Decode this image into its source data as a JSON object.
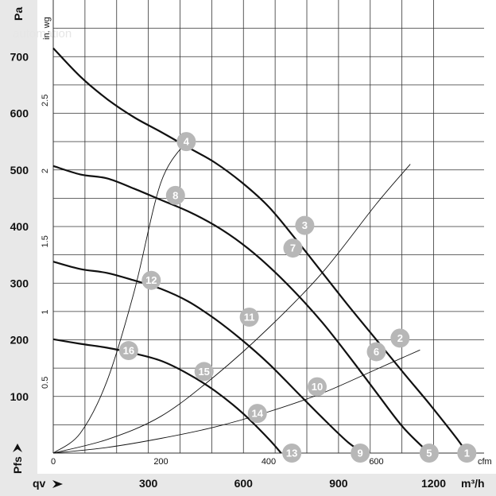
{
  "chart_data": {
    "type": "line",
    "x_axis_primary": {
      "label": "qv",
      "unit": "m³/h",
      "ticks": [
        300,
        600,
        900,
        1200
      ],
      "range": [
        0,
        1360
      ]
    },
    "x_axis_secondary": {
      "unit": "cfm",
      "ticks": [
        0,
        200,
        400,
        600
      ],
      "range": [
        0,
        800
      ]
    },
    "y_axis_primary": {
      "label": "Pfs",
      "unit": "Pa",
      "ticks": [
        100,
        200,
        300,
        400,
        500,
        600,
        700
      ],
      "range": [
        0,
        800
      ]
    },
    "y_axis_secondary": {
      "unit": "in. wg",
      "ticks": [
        "0.5",
        "1",
        "1.5",
        "2",
        "2.5"
      ],
      "values": [
        0.5,
        1,
        1.5,
        2,
        2.5
      ]
    },
    "watermark": "automation",
    "series": [
      {
        "x": [
          0,
          50,
          100,
          150,
          200,
          250,
          300,
          350,
          400,
          450,
          500,
          550,
          600,
          650,
          700,
          750,
          768
        ],
        "y": [
          715,
          665,
          625,
          593,
          567,
          540,
          513,
          478,
          435,
          378,
          318,
          258,
          200,
          142,
          85,
          25,
          0
        ]
      },
      {
        "x": [
          0,
          50,
          100,
          150,
          200,
          250,
          300,
          350,
          400,
          450,
          500,
          550,
          600,
          650,
          698
        ],
        "y": [
          507,
          492,
          485,
          467,
          447,
          427,
          402,
          370,
          330,
          283,
          230,
          170,
          107,
          45,
          0
        ]
      },
      {
        "x": [
          0,
          50,
          100,
          150,
          200,
          250,
          300,
          350,
          400,
          450,
          500,
          550,
          580
        ],
        "y": [
          338,
          325,
          318,
          305,
          290,
          268,
          237,
          200,
          158,
          110,
          62,
          17,
          0
        ]
      },
      {
        "x": [
          0,
          50,
          100,
          150,
          200,
          250,
          300,
          350,
          400,
          423
        ],
        "y": [
          201,
          193,
          186,
          176,
          163,
          140,
          110,
          72,
          25,
          0
        ]
      },
      {
        "x": [
          0,
          50,
          100,
          150,
          200,
          250
        ],
        "y": [
          0,
          35,
          128,
          284,
          478,
          553
        ]
      },
      {
        "x": [
          0,
          100,
          200,
          300,
          400,
          500,
          600,
          663
        ],
        "y": [
          0,
          24,
          65,
          136,
          221,
          319,
          440,
          510
        ]
      },
      {
        "x": [
          0,
          100,
          200,
          300,
          400,
          500,
          600,
          681
        ],
        "y": [
          0,
          10,
          26,
          46,
          73,
          106,
          148,
          182
        ]
      }
    ],
    "markers": [
      {
        "label": "1",
        "x": 768,
        "y": 0
      },
      {
        "label": "2",
        "x": 644,
        "y": 203
      },
      {
        "label": "3",
        "x": 467,
        "y": 402
      },
      {
        "label": "4",
        "x": 247,
        "y": 550
      },
      {
        "label": "5",
        "x": 698,
        "y": 0
      },
      {
        "label": "6",
        "x": 600,
        "y": 179
      },
      {
        "label": "7",
        "x": 445,
        "y": 362
      },
      {
        "label": "8",
        "x": 227,
        "y": 455
      },
      {
        "label": "9",
        "x": 570,
        "y": 0
      },
      {
        "label": "10",
        "x": 490,
        "y": 117
      },
      {
        "label": "11",
        "x": 364,
        "y": 240
      },
      {
        "label": "12",
        "x": 182,
        "y": 305
      },
      {
        "label": "13",
        "x": 443,
        "y": 0
      },
      {
        "label": "14",
        "x": 379,
        "y": 70
      },
      {
        "label": "15",
        "x": 280,
        "y": 144
      },
      {
        "label": "16",
        "x": 140,
        "y": 181
      }
    ]
  },
  "colors": {
    "axis_band": "#e8e8e8",
    "grid": "#333333",
    "curve": "#111111",
    "marker": "#b7b7b7",
    "watermark": "#e6e6e6"
  }
}
